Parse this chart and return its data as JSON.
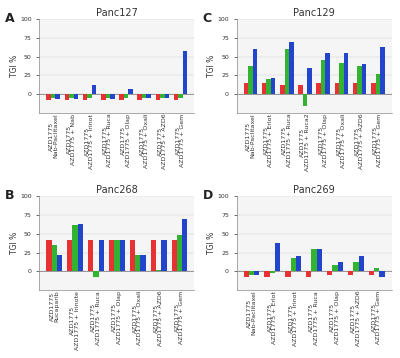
{
  "panels": {
    "A": {
      "title": "Panc127",
      "red": [
        -8,
        -8,
        -8,
        -8,
        -8,
        -8,
        -8,
        -8
      ],
      "green": [
        -5,
        -5,
        -5,
        -5,
        -5,
        -5,
        -5,
        -5
      ],
      "blue": [
        -6,
        -6,
        12,
        -6,
        7,
        -5,
        -5,
        57
      ],
      "xlabels": [
        "AZD1775\nNab-Paclitaxel",
        "AZD1775\nAZD1775 + Nab",
        "AZD1775\nAZD1775 + Irinot",
        "AZD1775\nAZD1775 + Ruca",
        "AZD1775\nAZD1775 + Olap",
        "AZD1775\nAZD1775 + Oxali",
        "AZD1775\nAZD1775 + AZD6",
        "AZD1775\nAZD1775 + Gem"
      ]
    },
    "C": {
      "title": "Panc129",
      "red": [
        15,
        15,
        12,
        12,
        15,
        15,
        15,
        15
      ],
      "green": [
        38,
        20,
        60,
        -15,
        45,
        42,
        38,
        27
      ],
      "blue": [
        60,
        22,
        70,
        35,
        55,
        55,
        40,
        63
      ],
      "xlabels": [
        "AZD1775\nNab-Paclitaxel",
        "AZD1775\nAZD1775 + Erlot",
        "AZD1775\nAZD1775 + Ruca",
        "AZD1775\nAZD1775 + Ruca2",
        "AZD1775\nAZD1775 + Olap",
        "AZD1775\nAZD1775 + Oxali",
        "AZD1775\nAZD1775 + AZD6",
        "AZD1775\nAZD1775 + Gem"
      ]
    },
    "B": {
      "title": "Panc268",
      "red": [
        42,
        42,
        42,
        42,
        42,
        42,
        42
      ],
      "green": [
        35,
        62,
        -8,
        42,
        22,
        2,
        48
      ],
      "blue": [
        22,
        63,
        42,
        42,
        22,
        42,
        70
      ],
      "xlabels": [
        "AZD1775\nRucaparib",
        "AZD1775\nAZD1775 + Irinote",
        "AZD1775\nAZD1775 + Ruca",
        "AZD1775\nAZD1775 + Olap",
        "AZD1775\nAZD1775 + Oxali",
        "AZD1775\nAZD1775 + AZD6",
        "AZD1775\nAZD1775 + Gem"
      ]
    },
    "D": {
      "title": "Panc269",
      "red": [
        -8,
        -8,
        -8,
        -8,
        -5,
        -5,
        -5
      ],
      "green": [
        -5,
        -2,
        18,
        30,
        8,
        12,
        5
      ],
      "blue": [
        -5,
        38,
        20,
        30,
        12,
        20,
        -8
      ],
      "xlabels": [
        "AZD1775\nNab-Paclitaxel",
        "AZD1775\nAZD1775 + Erlot",
        "AZD1775\nAZD1775 + Irinot",
        "AZD1775\nAZD1775 + Ruca",
        "AZD1775\nAZD1775 + Olap",
        "AZD1775\nAZD1775 + AZD6",
        "AZD1775\nAZD1775 + Gem"
      ]
    }
  },
  "panel_order": [
    [
      "A",
      "C"
    ],
    [
      "B",
      "D"
    ]
  ],
  "bar_colors": [
    "#e63232",
    "#32b432",
    "#2345cc"
  ],
  "bg_color": "#ffffff",
  "plot_bg": "#f5f5f5",
  "bar_width": 0.25,
  "ylim": [
    -25,
    100
  ],
  "yticks": [
    0,
    25,
    50,
    75,
    100
  ],
  "ylabel": "TGI %",
  "title_fontsize": 7,
  "tick_fontsize": 4.5,
  "label_fontsize": 5.5,
  "panel_label_fontsize": 9
}
